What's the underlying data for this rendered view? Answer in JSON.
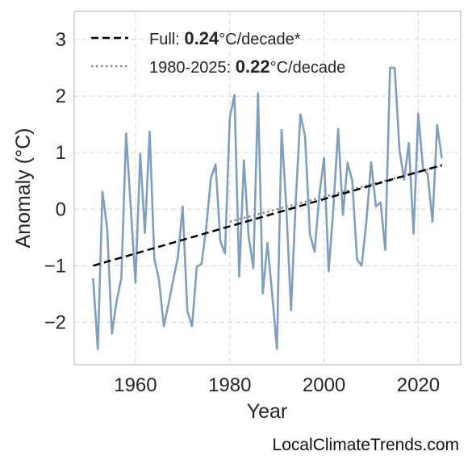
{
  "chart_data": {
    "type": "line",
    "xlabel": "Year",
    "ylabel": "Anomaly (°C)",
    "xlim": [
      1947,
      2029
    ],
    "ylim": [
      -2.75,
      3.5
    ],
    "xticks": [
      1960,
      1980,
      2000,
      2020
    ],
    "yticks": [
      -2,
      -1,
      0,
      1,
      2,
      3
    ],
    "grid": true,
    "legend_position": "top-left",
    "colors": {
      "series": "#7f9fc0",
      "full_trend": "#000000",
      "recent_trend": "#888888",
      "grid": "#dddddd",
      "frame": "#cccccc"
    },
    "series": [
      {
        "x": [
          1951,
          1952,
          1953,
          1954,
          1955,
          1956,
          1957,
          1958,
          1959,
          1960,
          1961,
          1962,
          1963,
          1964,
          1965,
          1966,
          1967,
          1968,
          1969,
          1970,
          1971,
          1972,
          1973,
          1974,
          1975,
          1976,
          1977,
          1978,
          1979,
          1980,
          1981,
          1982,
          1983,
          1984,
          1985,
          1986,
          1987,
          1988,
          1989,
          1990,
          1991,
          1992,
          1993,
          1994,
          1995,
          1996,
          1997,
          1998,
          1999,
          2000,
          2001,
          2002,
          2003,
          2004,
          2005,
          2006,
          2007,
          2008,
          2009,
          2010,
          2011,
          2012,
          2013,
          2014,
          2015,
          2016,
          2017,
          2018,
          2019,
          2020,
          2021,
          2022,
          2023,
          2024,
          2025
        ],
        "values": [
          -1.22,
          -2.48,
          0.31,
          -0.35,
          -2.2,
          -1.62,
          -1.22,
          1.34,
          0.02,
          -1.3,
          0.98,
          -0.42,
          1.37,
          -0.88,
          -1.25,
          -2.07,
          -1.68,
          -1.25,
          -0.85,
          0.05,
          -1.8,
          -2.07,
          -1.02,
          -0.97,
          -0.33,
          0.55,
          0.79,
          -0.57,
          -0.78,
          1.62,
          2.02,
          -1.19,
          0.86,
          -0.47,
          -1.04,
          2.05,
          -1.49,
          -0.6,
          -1.5,
          -2.47,
          1.4,
          0.02,
          -1.79,
          0.14,
          1.68,
          1.28,
          -0.44,
          -0.75,
          0.25,
          0.91,
          -1.1,
          0.05,
          1.42,
          -0.1,
          0.82,
          0.5,
          -0.89,
          -1.0,
          -0.2,
          0.83,
          0.05,
          0.12,
          -0.72,
          2.5,
          2.5,
          1.05,
          0.52,
          1.17,
          -0.43,
          1.69,
          0.72,
          0.62,
          -0.22,
          1.49,
          0.9
        ]
      }
    ],
    "trend_lines": [
      {
        "label": "Full: ",
        "rate": "0.24",
        "unit": "°C/decade*",
        "style": "dashed",
        "x": [
          1951,
          2025
        ],
        "y": [
          -1.0,
          0.78
        ]
      },
      {
        "label": "1980-2025: ",
        "rate": "0.22",
        "unit": "°C/decade",
        "style": "dotted",
        "x": [
          1980,
          2025
        ],
        "y": [
          -0.22,
          0.77
        ]
      }
    ]
  },
  "watermark": "LocalClimateTrends.com"
}
